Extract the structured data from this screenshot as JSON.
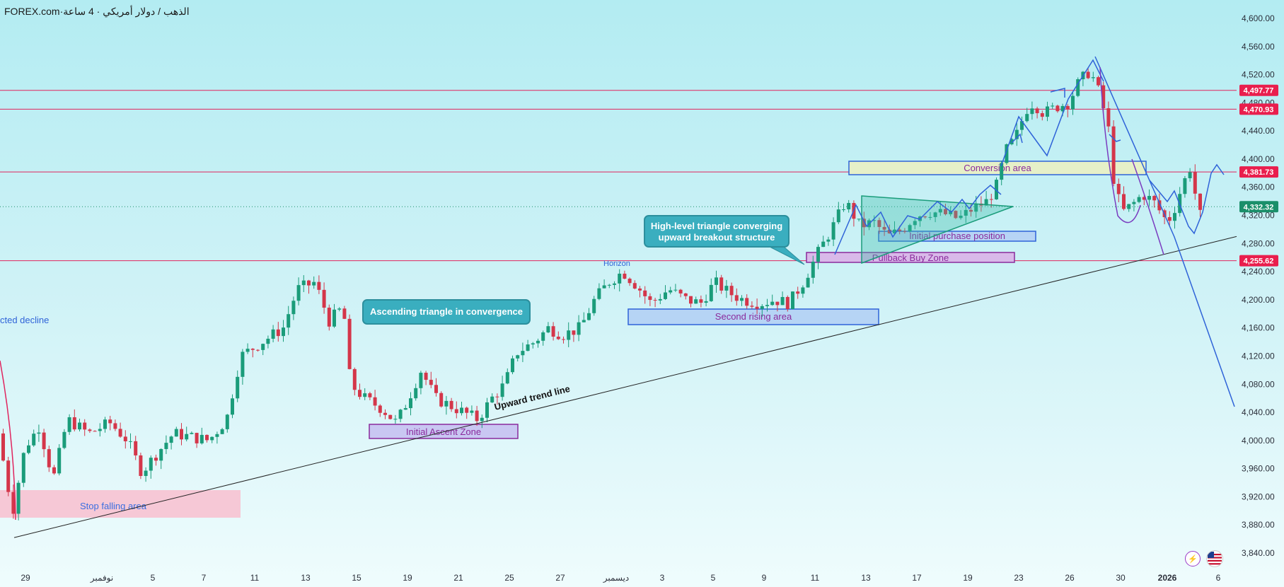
{
  "header": {
    "brand": "FOREX.com",
    "separator": " · ",
    "instrument_label": "الذهب / دولار أمريكي · 4 ساعة"
  },
  "price_axis": {
    "ticks": [
      "4,600.00",
      "4,560.00",
      "4,520.00",
      "4,480.00",
      "4,440.00",
      "4,400.00",
      "4,360.00",
      "4,320.00",
      "4,280.00",
      "4,240.00",
      "4,200.00",
      "4,160.00",
      "4,120.00",
      "4,080.00",
      "4,040.00",
      "4,000.00",
      "3,960.00",
      "3,920.00",
      "3,880.00",
      "3,840.00"
    ]
  },
  "time_axis": {
    "ticks": [
      {
        "label": "29",
        "bold": false
      },
      {
        "label": "نوفمبر",
        "bold": false
      },
      {
        "label": "5",
        "bold": false
      },
      {
        "label": "7",
        "bold": false
      },
      {
        "label": "11",
        "bold": false
      },
      {
        "label": "13",
        "bold": false
      },
      {
        "label": "15",
        "bold": false
      },
      {
        "label": "19",
        "bold": false
      },
      {
        "label": "21",
        "bold": false
      },
      {
        "label": "25",
        "bold": false
      },
      {
        "label": "27",
        "bold": false
      },
      {
        "label": "ديسمبر",
        "bold": false
      },
      {
        "label": "3",
        "bold": false
      },
      {
        "label": "5",
        "bold": false
      },
      {
        "label": "9",
        "bold": false
      },
      {
        "label": "11",
        "bold": false
      },
      {
        "label": "13",
        "bold": false
      },
      {
        "label": "17",
        "bold": false
      },
      {
        "label": "19",
        "bold": false
      },
      {
        "label": "23",
        "bold": false
      },
      {
        "label": "26",
        "bold": false
      },
      {
        "label": "30",
        "bold": false
      },
      {
        "label": "2026",
        "bold": true
      },
      {
        "label": "6",
        "bold": false
      }
    ]
  },
  "price_badges": [
    {
      "label": "4,497.77",
      "price": 4497.77,
      "color": "#e91e4d"
    },
    {
      "label": "4,470.93",
      "price": 4470.93,
      "color": "#e91e4d"
    },
    {
      "label": "4,381.73",
      "price": 4381.73,
      "color": "#e91e4d"
    },
    {
      "label": "4,332.32",
      "price": 4332.32,
      "color": "#1a8f6a"
    },
    {
      "label": "4,255.62",
      "price": 4255.62,
      "color": "#e91e4d"
    }
  ],
  "horizontal_levels": [
    4497.77,
    4470.93,
    4381.73,
    4255.62
  ],
  "current_price": 4332.32,
  "zones": [
    {
      "label": "Stop falling area",
      "fill": "#f6c8d6",
      "border": "none",
      "text_color": "#3b6fe0"
    },
    {
      "label": "Initial Ascent Zone",
      "fill": "#c9c7f2",
      "border": "#8a2a9c",
      "text_color": "#8a2a9c"
    },
    {
      "label": "Second rising area",
      "fill": "#b6d4f5",
      "border": "#2f63d8",
      "text_color": "#8a2a9c"
    },
    {
      "label": "Pullback Buy Zone",
      "fill": "#d9b9e9",
      "border": "#8a2a9c",
      "text_color": "#8a2a9c"
    },
    {
      "label": "Initial purchase position",
      "fill": "#b6d4f5",
      "border": "#2f63d8",
      "text_color": "#8a2a9c"
    },
    {
      "label": "Conversion area",
      "fill": "#e6f0c8",
      "border": "#2f63d8",
      "text_color": "#8a2a9c"
    }
  ],
  "annotations": {
    "callout_ascending": "Ascending triangle in convergence",
    "callout_high_level_line1": "High-level triangle converging",
    "callout_high_level_line2": "upward breakout structure",
    "trend_line_label": "Upward trend line",
    "horizon_label": "Horizon",
    "left_edge_label": "cted decline"
  },
  "colors": {
    "up_candle": "#1a9c7a",
    "down_candle": "#d4364a",
    "level_line": "#e0245e",
    "drawing_blue": "#2f63d8",
    "drawing_purple": "#7a3cc0"
  },
  "icons": [
    "lightning-icon",
    "us-flag-icon"
  ]
}
